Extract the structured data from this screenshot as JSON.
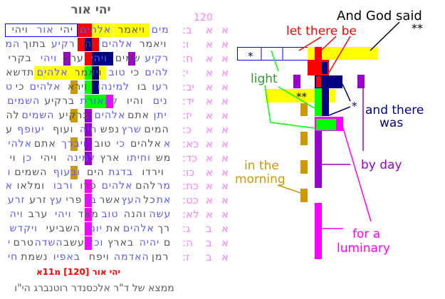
{
  "title": "יהי אור",
  "count": "120",
  "colors": {
    "blue": "#5a5aff",
    "gray": "#555555",
    "yellow": "#ffff00",
    "red": "#ff0000",
    "navy": "#000080",
    "green": "#00ff00",
    "purple": "#9900cc",
    "gold": "#cc9900",
    "magenta": "#ff00ff",
    "label": "#ff80ff"
  },
  "rows": [
    {
      "words": [
        "מים",
        "ויאמר",
        "אלהים",
        "יהי",
        "אור",
        "ויהי"
      ],
      "start": "blue",
      "label": {
        "book": "א",
        "chapter": "א",
        "verse": ":ב"
      }
    },
    {
      "words": [
        "ויאמר",
        "אלהים",
        "יהי",
        "רקיע",
        "בתוך",
        "המ"
      ],
      "start": "gray",
      "label": {
        "book": "א",
        "chapter": "א",
        "verse": ":ו"
      }
    },
    {
      "words": [
        "רקיע",
        "שמים",
        "ויהי",
        "ערב",
        "ויהי",
        "בקרי"
      ],
      "start": "blue",
      "label": {
        "book": "א",
        "chapter": "א",
        "verse": ":ח"
      }
    },
    {
      "words": [
        "להים",
        "כי",
        "טוב",
        "ויאמר",
        "אלהים",
        "תדשא"
      ],
      "start": "blue",
      "label": {
        "book": "א",
        "chapter": "א",
        "verse": ":י"
      }
    },
    {
      "words": [
        "רעו",
        "בו",
        "למינהו",
        "וירא",
        "אלהים",
        "כי",
        "ט"
      ],
      "start": "blue",
      "label": {
        "book": "א",
        "chapter": "א",
        "verse": ":יב"
      }
    },
    {
      "words": [
        "נים",
        "והיו",
        "למאורת",
        "ברקיע",
        "השמים"
      ],
      "start": "blue",
      "label": {
        "book": "א",
        "chapter": "א",
        "verse": ":יד"
      }
    },
    {
      "words": [
        "יתן",
        "אתם",
        "אלהים",
        "ברקיע",
        "השמים",
        "לה"
      ],
      "start": "blue",
      "label": {
        "book": "א",
        "chapter": "א",
        "verse": ":יז"
      }
    },
    {
      "words": [
        "המים",
        "שרץ",
        "נפש",
        "חיה",
        "ועוף",
        "יעופף",
        "ע"
      ],
      "start": "gray",
      "label": {
        "book": "א",
        "chapter": "א",
        "verse": ":כ"
      }
    },
    {
      "words": [
        "א",
        "אלהים",
        "כי",
        "טוב",
        "ויברך",
        "אתם",
        "אלהי"
      ],
      "start": "blue",
      "label": {
        "book": "א",
        "chapter": "א",
        "verse": ":כא"
      }
    },
    {
      "words": [
        "מש",
        "וחיתו",
        "ארץ",
        "למינה",
        "ויהי",
        "כן",
        "וי"
      ],
      "start": "gray",
      "label": {
        "book": "א",
        "chapter": "א",
        "verse": ":כד"
      }
    },
    {
      "words": [
        "וירדו",
        "בדגת",
        "הים",
        "ובעוף",
        "השמים",
        "ו"
      ],
      "start": "gray",
      "label": {
        "book": "א",
        "chapter": "א",
        "verse": ":כו"
      }
    },
    {
      "words": [
        "מר",
        "להם",
        "אלהים",
        "פרו",
        "ורבו",
        "ומלאו",
        "א"
      ],
      "start": "blue",
      "label": {
        "book": "א",
        "chapter": "א",
        "verse": ":כח"
      }
    },
    {
      "words": [
        "את",
        "כל",
        "העץ",
        "אשר",
        "בו",
        "פרי",
        "עץ",
        "זרע",
        "זרע"
      ],
      "start": "blue",
      "label": {
        "book": "א",
        "chapter": "א",
        "verse": ":כט"
      }
    },
    {
      "words": [
        "עשה",
        "והנה",
        "טוב",
        "מאד",
        "ויהי",
        "ערב",
        "ויה"
      ],
      "start": "blue",
      "label": {
        "book": "א",
        "chapter": "א",
        "verse": ":לא"
      }
    },
    {
      "words": [
        "רך",
        "אלהים",
        "את",
        "יום",
        "השביעי",
        "ויקדש"
      ],
      "start": "gray",
      "label": {
        "book": "א",
        "chapter": "ב",
        "verse": ":ג"
      }
    },
    {
      "words": [
        "ם",
        "יהיה",
        "בארץ",
        "וכל",
        "עשב",
        "השדה",
        "טרם",
        "י"
      ],
      "start": "gray",
      "label": {
        "book": "א",
        "chapter": "ב",
        "verse": ":ה"
      }
    },
    {
      "words": [
        "רמן",
        "האדמה",
        "ויפח",
        "באפיו",
        "נשמת",
        "חי"
      ],
      "start": "gray",
      "label": {
        "book": "א",
        "chapter": "ב",
        "verse": ":ז"
      }
    }
  ],
  "highlights": [
    {
      "row": 0,
      "cols": [
        10,
        11
      ],
      "color": "red"
    },
    {
      "row": 0,
      "cols": [
        12,
        13,
        14,
        15,
        16,
        17,
        18,
        19
      ],
      "color": "yellow"
    },
    {
      "row": 1,
      "cols": [
        10,
        12
      ],
      "color": "red"
    },
    {
      "row": 1,
      "cols": [
        11
      ],
      "color": "navy"
    },
    {
      "row": 2,
      "cols": [
        8,
        17
      ],
      "color": "purple"
    },
    {
      "row": 2,
      "cols": [
        11
      ],
      "color": "red"
    },
    {
      "row": 2,
      "cols": [
        12,
        13,
        14
      ],
      "color": "navy"
    },
    {
      "row": 3,
      "cols": [
        4,
        5,
        6,
        7,
        8,
        9,
        10,
        13
      ],
      "color": "yellow"
    },
    {
      "row": 3,
      "cols": [
        11
      ],
      "color": "green"
    },
    {
      "row": 3,
      "cols": [
        12
      ],
      "color": "navy"
    },
    {
      "row": 4,
      "cols": [
        9
      ],
      "color": "gold"
    },
    {
      "row": 4,
      "cols": [
        11
      ],
      "color": "green"
    },
    {
      "row": 4,
      "cols": [
        12
      ],
      "color": "navy"
    },
    {
      "row": 5,
      "cols": [
        11,
        12,
        13
      ],
      "color": "green"
    },
    {
      "row": 5,
      "cols": [
        14
      ],
      "color": "magenta"
    },
    {
      "row": 6,
      "cols": [
        9
      ],
      "color": "gold"
    },
    {
      "row": 6,
      "cols": [
        11
      ],
      "color": "purple"
    },
    {
      "row": 7,
      "cols": [
        11
      ],
      "color": "purple"
    },
    {
      "row": 8,
      "cols": [
        9
      ],
      "color": "gold"
    },
    {
      "row": 8,
      "cols": [
        11
      ],
      "color": "purple"
    },
    {
      "row": 9,
      "cols": [
        11
      ],
      "color": "purple"
    },
    {
      "row": 10,
      "cols": [
        9
      ],
      "color": "gold"
    },
    {
      "row": 11,
      "cols": [
        11
      ],
      "color": "magenta"
    },
    {
      "row": 12,
      "cols": [
        11
      ],
      "color": "magenta"
    },
    {
      "row": 13,
      "cols": [
        11
      ],
      "color": "magenta"
    },
    {
      "row": 14,
      "cols": [
        11
      ],
      "color": "magenta"
    },
    {
      "row": 15,
      "cols": [
        11
      ],
      "color": "magenta"
    }
  ],
  "footer": {
    "code": "יהי אור [120] מ11א",
    "credit": "ממצא של ד\"ר אלכסנדר רוטנברג הי\"ו"
  },
  "diagram": {
    "and_god_said": "And God said",
    "double_star_top": "**",
    "let_there_be": "let there be",
    "star_box": "*",
    "light": "light",
    "double_star_mid": "**",
    "star_navy": "*",
    "and_there": "and there",
    "was": "was",
    "by_day": "by day",
    "in_the": "in the",
    "morning": "morning",
    "for_a": "for a",
    "luminary": "luminary"
  }
}
